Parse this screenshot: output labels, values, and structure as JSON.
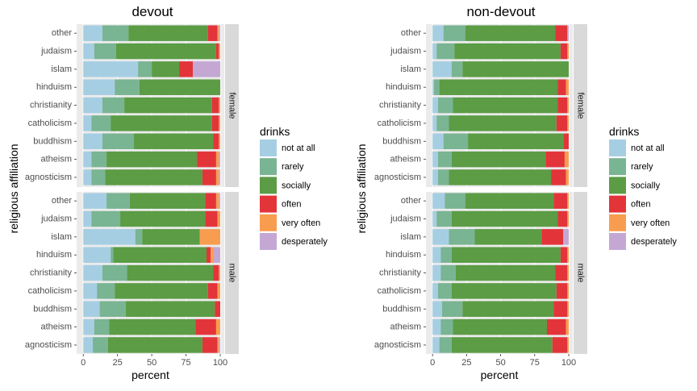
{
  "chart_data": {
    "type": "bar",
    "orientation": "horizontal",
    "stacked": true,
    "xlabel": "percent",
    "ylabel": "religious affiliation",
    "xlim": [
      0,
      100
    ],
    "xticks": [
      "0",
      "25",
      "50",
      "75",
      "100"
    ],
    "legend_title": "drinks",
    "legend_position": "right",
    "facet_labels": [
      "female",
      "male"
    ],
    "categories": [
      "other",
      "judaism",
      "islam",
      "hinduism",
      "christianity",
      "catholicism",
      "buddhism",
      "atheism",
      "agnosticism"
    ],
    "levels": [
      "not at all",
      "rarely",
      "socially",
      "often",
      "very often",
      "desperately"
    ],
    "colors": [
      "#a6cee3",
      "#79b493",
      "#5b9c45",
      "#e3343a",
      "#f89d50",
      "#c4a8d3"
    ],
    "panels": [
      {
        "title": "devout",
        "facets": [
          {
            "facet": "female",
            "values": {
              "other": [
                14,
                19,
                58,
                7,
                1,
                1
              ],
              "judaism": [
                8,
                16,
                73,
                2,
                1,
                0
              ],
              "islam": [
                40,
                10,
                20,
                10,
                0,
                20
              ],
              "hinduism": [
                23,
                18,
                59,
                0,
                0,
                0
              ],
              "christianity": [
                14,
                16,
                64,
                5,
                1,
                0
              ],
              "catholicism": [
                6,
                14,
                74,
                5,
                1,
                0
              ],
              "buddhism": [
                14,
                23,
                58,
                4,
                1,
                0
              ],
              "atheism": [
                6,
                11,
                66,
                14,
                2,
                1
              ],
              "agnosticism": [
                6,
                10,
                71,
                10,
                2,
                1
              ]
            }
          },
          {
            "facet": "male",
            "values": {
              "other": [
                17,
                17,
                55,
                8,
                2,
                1
              ],
              "judaism": [
                6,
                21,
                62,
                9,
                2,
                0
              ],
              "islam": [
                38,
                5,
                42,
                0,
                15,
                0
              ],
              "hinduism": [
                20,
                2,
                68,
                3,
                2,
                5
              ],
              "christianity": [
                14,
                18,
                63,
                4,
                1,
                0
              ],
              "catholicism": [
                10,
                13,
                68,
                7,
                2,
                0
              ],
              "buddhism": [
                12,
                19,
                65,
                4,
                0,
                0
              ],
              "atheism": [
                8,
                11,
                63,
                15,
                3,
                0
              ],
              "agnosticism": [
                7,
                11,
                69,
                11,
                1,
                1
              ]
            }
          }
        ]
      },
      {
        "title": "non-devout",
        "facets": [
          {
            "facet": "female",
            "values": {
              "other": [
                8,
                16,
                66,
                9,
                0,
                1
              ],
              "judaism": [
                3,
                13,
                78,
                5,
                1,
                0
              ],
              "islam": [
                14,
                8,
                78,
                0,
                0,
                0
              ],
              "hinduism": [
                1,
                4,
                87,
                6,
                2,
                0
              ],
              "christianity": [
                4,
                11,
                77,
                7,
                1,
                0
              ],
              "catholicism": [
                3,
                9,
                79,
                8,
                1,
                0
              ],
              "buddhism": [
                8,
                18,
                70,
                4,
                0,
                0
              ],
              "atheism": [
                4,
                10,
                69,
                14,
                3,
                0
              ],
              "agnosticism": [
                4,
                8,
                75,
                11,
                2,
                0
              ]
            }
          },
          {
            "facet": "male",
            "values": {
              "other": [
                9,
                15,
                65,
                10,
                1,
                0
              ],
              "judaism": [
                3,
                11,
                78,
                7,
                1,
                0
              ],
              "islam": [
                12,
                19,
                49,
                16,
                0,
                4
              ],
              "hinduism": [
                6,
                8,
                80,
                5,
                1,
                0
              ],
              "christianity": [
                6,
                11,
                73,
                9,
                1,
                0
              ],
              "catholicism": [
                4,
                10,
                77,
                8,
                1,
                0
              ],
              "buddhism": [
                7,
                15,
                67,
                10,
                1,
                0
              ],
              "atheism": [
                6,
                9,
                69,
                14,
                2,
                0
              ],
              "agnosticism": [
                5,
                9,
                74,
                11,
                1,
                0
              ]
            }
          }
        ]
      }
    ]
  }
}
